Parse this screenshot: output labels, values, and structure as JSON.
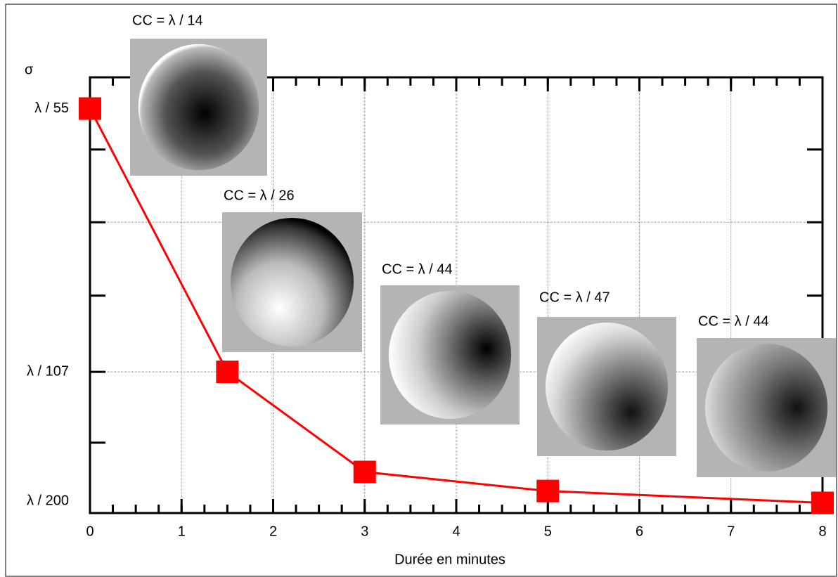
{
  "chart_data": {
    "type": "line",
    "x_label": "Durée en minutes",
    "y_label": "σ",
    "x": [
      0,
      1.5,
      3,
      5,
      8
    ],
    "series": [
      {
        "name": null,
        "color": "#ff0000",
        "values": [
          55,
          107,
          167,
          187,
          202
        ]
      }
    ],
    "xlim": [
      0,
      8
    ],
    "xticks": [
      0,
      1,
      2,
      3,
      4,
      5,
      6,
      7,
      8
    ],
    "xminor_step": 0.25,
    "y_scale": "reciprocal",
    "ylim": [
      217,
      52
    ],
    "yticks": [
      {
        "value": 55,
        "label": "λ / 55"
      },
      {
        "value": 107,
        "label": "λ / 107"
      },
      {
        "value": 200,
        "label": "λ / 200"
      }
    ],
    "yminorticks": [
      59.5,
      69.6,
      84,
      143.5
    ],
    "ygridlines": [
      69.6,
      107
    ],
    "grid": true,
    "annotations": [
      "CC = λ / 14",
      "CC = λ / 26",
      "CC = λ / 44",
      "CC = λ / 47",
      "CC = λ / 44"
    ]
  }
}
